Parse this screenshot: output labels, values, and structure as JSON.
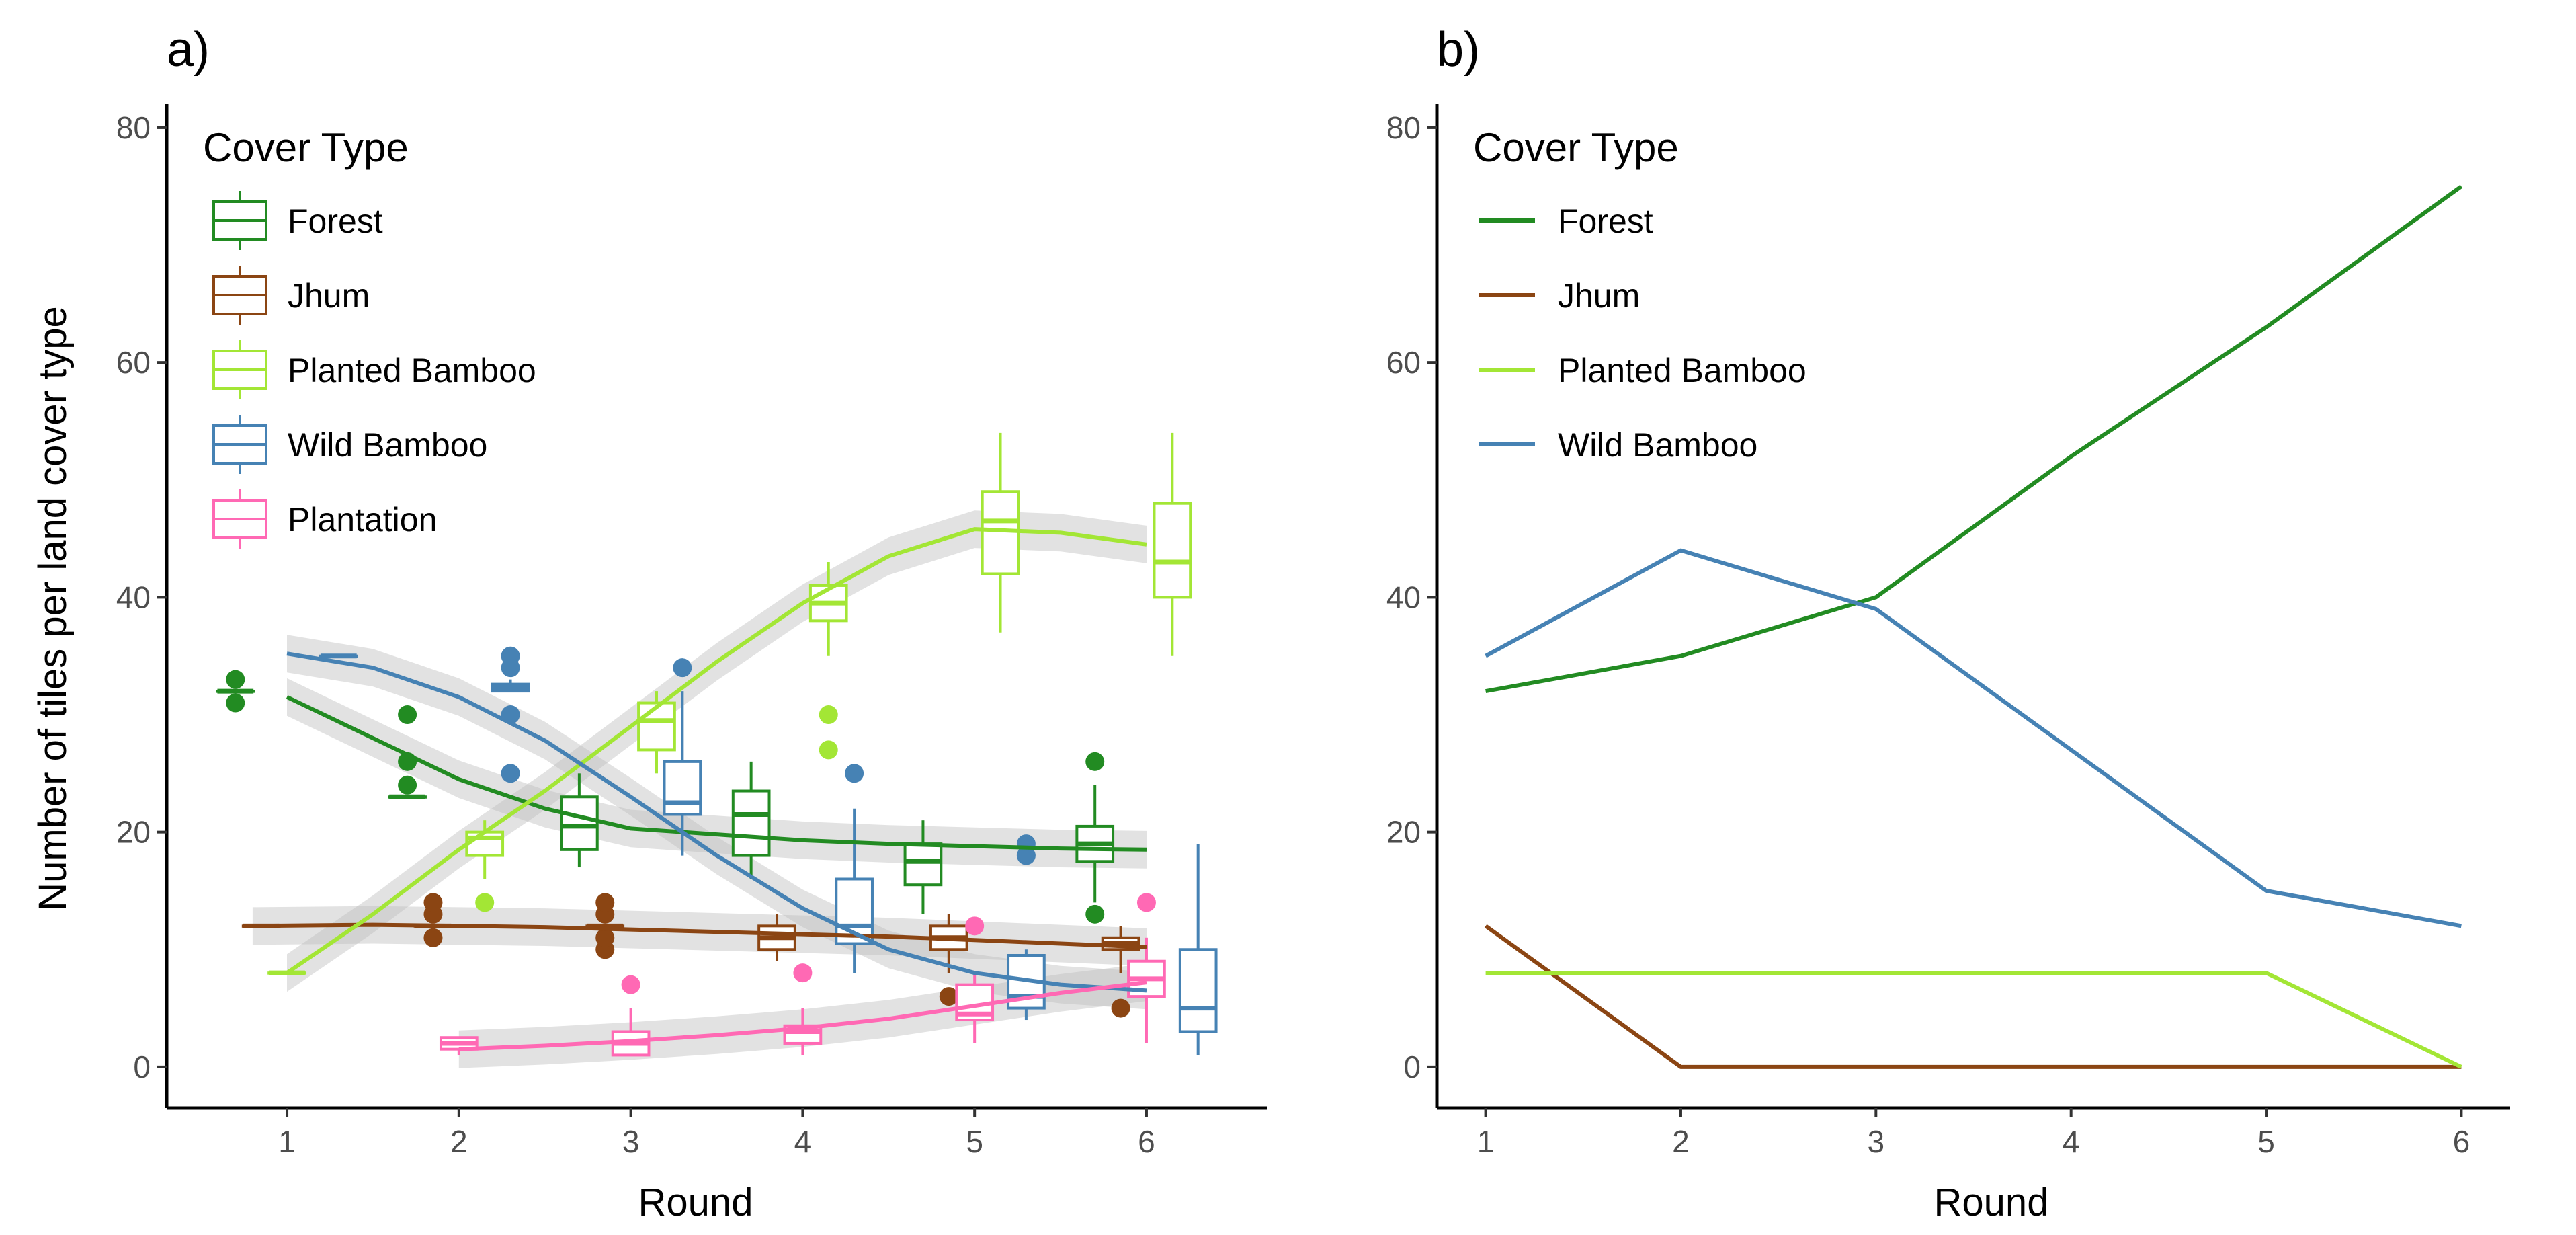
{
  "figure": {
    "panel_a_tag": "a)",
    "panel_b_tag": "b)"
  },
  "legend_a": {
    "title": "Cover Type",
    "items": [
      {
        "label": "Forest",
        "color": "#228B22"
      },
      {
        "label": "Jhum",
        "color": "#8B4513"
      },
      {
        "label": "Planted Bamboo",
        "color": "#A3E635"
      },
      {
        "label": "Wild Bamboo",
        "color": "#4682B4"
      },
      {
        "label": "Plantation",
        "color": "#FF69B4"
      }
    ]
  },
  "legend_b": {
    "title": "Cover Type",
    "items": [
      {
        "label": "Forest",
        "color": "#228B22"
      },
      {
        "label": "Jhum",
        "color": "#8B4513"
      },
      {
        "label": "Planted Bamboo",
        "color": "#A3E635"
      },
      {
        "label": "Wild Bamboo",
        "color": "#4682B4"
      }
    ]
  },
  "chart_data": [
    {
      "type": "boxplot",
      "panel": "a)",
      "xlabel": "Round",
      "ylabel": "Number of tiles per land cover type",
      "xlim": [
        0.3,
        6.7
      ],
      "ylim": [
        -3.5,
        82
      ],
      "x_ticks": [
        1,
        2,
        3,
        4,
        5,
        6
      ],
      "y_ticks": [
        0,
        20,
        40,
        60,
        80
      ],
      "grid": false,
      "legend_position": "top-left",
      "series": [
        {
          "name": "Forest",
          "color": "#228B22",
          "boxes": [
            {
              "x": 0.7,
              "min": 32,
              "q1": 32,
              "median": 32,
              "q3": 32,
              "max": 32,
              "outliers": [
                31,
                33
              ]
            },
            {
              "x": 1.7,
              "min": 23,
              "q1": 23,
              "median": 23,
              "q3": 23,
              "max": 23,
              "outliers": [
                24,
                26,
                30
              ]
            },
            {
              "x": 2.7,
              "min": 17,
              "q1": 18.5,
              "median": 20.5,
              "q3": 23,
              "max": 25,
              "outliers": []
            },
            {
              "x": 3.7,
              "min": 16,
              "q1": 18,
              "median": 21.5,
              "q3": 23.5,
              "max": 26,
              "outliers": []
            },
            {
              "x": 4.7,
              "min": 13,
              "q1": 15.5,
              "median": 17.5,
              "q3": 19,
              "max": 21,
              "outliers": []
            },
            {
              "x": 5.7,
              "min": 14,
              "q1": 17.5,
              "median": 19,
              "q3": 20.5,
              "max": 24,
              "outliers": [
                13,
                26
              ]
            }
          ],
          "smooth": {
            "x": [
              1,
              1.5,
              2,
              2.5,
              3,
              3.5,
              4,
              4.5,
              5,
              5.5,
              6
            ],
            "y": [
              31.5,
              28,
              24.5,
              22,
              20.3,
              19.8,
              19.3,
              19,
              18.8,
              18.6,
              18.5
            ]
          }
        },
        {
          "name": "Jhum",
          "color": "#8B4513",
          "boxes": [
            {
              "x": 0.85,
              "min": 12,
              "q1": 12,
              "median": 12,
              "q3": 12,
              "max": 12,
              "outliers": []
            },
            {
              "x": 1.85,
              "min": 12,
              "q1": 12,
              "median": 12,
              "q3": 12,
              "max": 12,
              "outliers": [
                11,
                13,
                14
              ]
            },
            {
              "x": 2.85,
              "min": 12,
              "q1": 12,
              "median": 12,
              "q3": 12,
              "max": 12,
              "outliers": [
                10,
                11,
                13,
                14
              ]
            },
            {
              "x": 3.85,
              "min": 9,
              "q1": 10,
              "median": 11,
              "q3": 12,
              "max": 13,
              "outliers": []
            },
            {
              "x": 4.85,
              "min": 8,
              "q1": 10,
              "median": 11,
              "q3": 12,
              "max": 13,
              "outliers": [
                6
              ]
            },
            {
              "x": 5.85,
              "min": 8,
              "q1": 10,
              "median": 10.5,
              "q3": 11,
              "max": 12,
              "outliers": [
                5
              ]
            }
          ],
          "smooth": {
            "x": [
              0.8,
              1.5,
              2,
              2.5,
              3,
              3.5,
              4,
              4.5,
              5,
              5.5,
              6
            ],
            "y": [
              12,
              12.1,
              12,
              11.9,
              11.7,
              11.5,
              11.3,
              11.1,
              10.8,
              10.5,
              10.2
            ]
          }
        },
        {
          "name": "Planted Bamboo",
          "color": "#A3E635",
          "boxes": [
            {
              "x": 1.0,
              "min": 8,
              "q1": 8,
              "median": 8,
              "q3": 8,
              "max": 8,
              "outliers": []
            },
            {
              "x": 2.15,
              "min": 16,
              "q1": 18,
              "median": 19.5,
              "q3": 20,
              "max": 21,
              "outliers": [
                14
              ]
            },
            {
              "x": 3.15,
              "min": 25,
              "q1": 27,
              "median": 29.5,
              "q3": 31,
              "max": 32,
              "outliers": []
            },
            {
              "x": 4.15,
              "min": 35,
              "q1": 38,
              "median": 39.5,
              "q3": 41,
              "max": 43,
              "outliers": [
                27,
                30
              ]
            },
            {
              "x": 5.15,
              "min": 37,
              "q1": 42,
              "median": 46.5,
              "q3": 49,
              "max": 54,
              "outliers": []
            },
            {
              "x": 6.15,
              "min": 35,
              "q1": 40,
              "median": 43,
              "q3": 48,
              "max": 54,
              "outliers": []
            }
          ],
          "smooth": {
            "x": [
              1,
              1.5,
              2,
              2.5,
              3,
              3.5,
              4,
              4.5,
              5,
              5.5,
              6
            ],
            "y": [
              8,
              13,
              18.5,
              23.5,
              29,
              34.5,
              39.5,
              43.5,
              45.8,
              45.5,
              44.5
            ]
          }
        },
        {
          "name": "Wild Bamboo",
          "color": "#4682B4",
          "boxes": [
            {
              "x": 1.3,
              "min": 35,
              "q1": 35,
              "median": 35,
              "q3": 35,
              "max": 35,
              "outliers": []
            },
            {
              "x": 2.3,
              "min": 32,
              "q1": 32,
              "median": 32.3,
              "q3": 32.6,
              "max": 33,
              "outliers": [
                25,
                30,
                34,
                35
              ]
            },
            {
              "x": 3.3,
              "min": 18,
              "q1": 21.5,
              "median": 22.5,
              "q3": 26,
              "max": 32,
              "outliers": [
                34
              ]
            },
            {
              "x": 4.3,
              "min": 8,
              "q1": 10.5,
              "median": 12,
              "q3": 16,
              "max": 22,
              "outliers": [
                25
              ]
            },
            {
              "x": 5.3,
              "min": 4,
              "q1": 5,
              "median": 6,
              "q3": 9.5,
              "max": 10,
              "outliers": [
                18,
                19
              ]
            },
            {
              "x": 6.3,
              "min": 1,
              "q1": 3,
              "median": 5,
              "q3": 10,
              "max": 19,
              "outliers": []
            }
          ],
          "smooth": {
            "x": [
              1,
              1.5,
              2,
              2.5,
              3,
              3.5,
              4,
              4.5,
              5,
              5.5,
              6
            ],
            "y": [
              35.2,
              34,
              31.5,
              27.8,
              23,
              18,
              13.5,
              10,
              8,
              7,
              6.5
            ]
          }
        },
        {
          "name": "Plantation",
          "color": "#FF69B4",
          "boxes": [
            {
              "x": 2.0,
              "min": 1,
              "q1": 1.5,
              "median": 2,
              "q3": 2.5,
              "max": 2.5,
              "outliers": []
            },
            {
              "x": 3.0,
              "min": 1,
              "q1": 1,
              "median": 2,
              "q3": 3,
              "max": 5,
              "outliers": [
                7
              ]
            },
            {
              "x": 4.0,
              "min": 1,
              "q1": 2,
              "median": 3,
              "q3": 3.5,
              "max": 5,
              "outliers": [
                8
              ]
            },
            {
              "x": 5.0,
              "min": 2,
              "q1": 4,
              "median": 4.5,
              "q3": 7,
              "max": 8,
              "outliers": [
                12
              ]
            },
            {
              "x": 6.0,
              "min": 2,
              "q1": 6,
              "median": 7.5,
              "q3": 9,
              "max": 11,
              "outliers": [
                14
              ]
            }
          ],
          "smooth": {
            "x": [
              2,
              2.5,
              3,
              3.5,
              4,
              4.5,
              5,
              5.5,
              6
            ],
            "y": [
              1.5,
              1.8,
              2.2,
              2.7,
              3.3,
              4.1,
              5.2,
              6.3,
              7.2
            ]
          }
        }
      ]
    },
    {
      "type": "line",
      "panel": "b)",
      "xlabel": "Round",
      "ylabel": "",
      "xlim": [
        0.75,
        6.25
      ],
      "ylim": [
        -3.5,
        82
      ],
      "x_ticks": [
        1,
        2,
        3,
        4,
        5,
        6
      ],
      "y_ticks": [
        0,
        20,
        40,
        60,
        80
      ],
      "grid": false,
      "legend_position": "top-left",
      "x": [
        1,
        2,
        3,
        4,
        5,
        6
      ],
      "series": [
        {
          "name": "Forest",
          "color": "#228B22",
          "values": [
            32,
            35,
            40,
            52,
            63,
            75
          ]
        },
        {
          "name": "Jhum",
          "color": "#8B4513",
          "values": [
            12,
            0,
            0,
            0,
            0,
            0
          ]
        },
        {
          "name": "Planted Bamboo",
          "color": "#A3E635",
          "values": [
            8,
            8,
            8,
            8,
            8,
            0
          ]
        },
        {
          "name": "Wild Bamboo",
          "color": "#4682B4",
          "values": [
            35,
            44,
            39,
            27,
            15,
            12
          ]
        }
      ]
    }
  ]
}
